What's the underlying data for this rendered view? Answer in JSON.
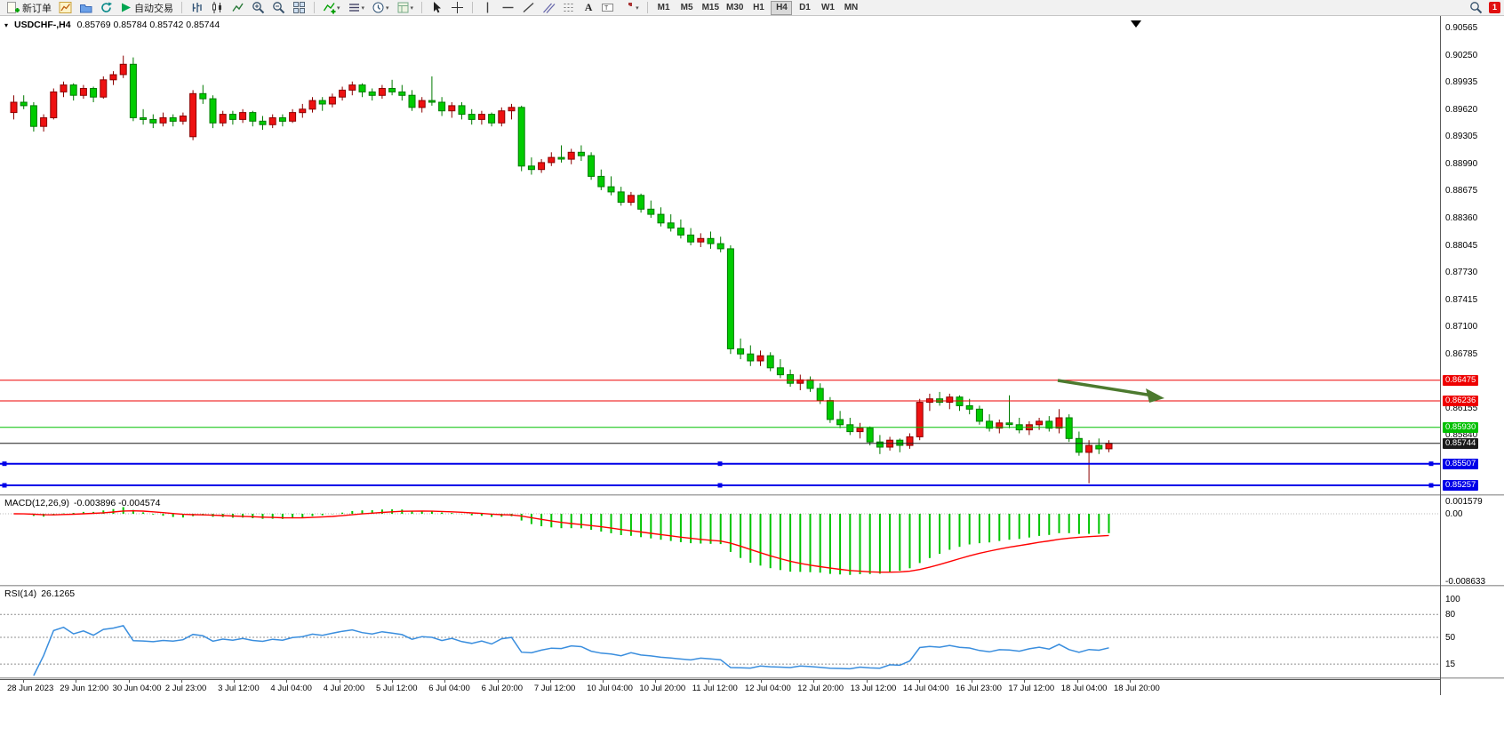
{
  "toolbar": {
    "new_order_label": "新订单",
    "autotrading_label": "自动交易",
    "timeframes": [
      "M1",
      "M5",
      "M15",
      "M30",
      "H1",
      "H4",
      "D1",
      "W1",
      "MN"
    ],
    "active_timeframe": "H4",
    "notification_badge": "1",
    "icons": [
      "new-order",
      "new-chart",
      "profiles",
      "refresh",
      "autotrading-play",
      "bar-chart",
      "candlestick-chart",
      "line-chart",
      "zoom-in",
      "zoom-out",
      "tile-windows",
      "indicators",
      "indicator-list",
      "objects-dropdown",
      "period-clock",
      "templates",
      "cursor",
      "crosshair",
      "vertical-line",
      "horizontal-line",
      "trendline",
      "equidistant-channel",
      "fibonacci",
      "text",
      "text-label",
      "arrow-shapes",
      "search",
      "alerts"
    ]
  },
  "chart": {
    "symbol_title": "USDCHF-,H4",
    "ohlc": "0.85769 0.85784 0.85742 0.85744",
    "price_axis_labels": [
      "0.90565",
      "0.90250",
      "0.89935",
      "0.89620",
      "0.89305",
      "0.88990",
      "0.88675",
      "0.88360",
      "0.88045",
      "0.87730",
      "0.87415",
      "0.87100",
      "0.86785",
      "0.86155",
      "0.85840"
    ],
    "levels": [
      {
        "price": 0.86475,
        "label": "0.86475",
        "color": "#ee0000",
        "width": 1,
        "handles": false
      },
      {
        "price": 0.86236,
        "label": "0.86236",
        "color": "#ee0000",
        "width": 1,
        "handles": false
      },
      {
        "price": 0.8593,
        "label": "0.85930",
        "color": "#00c000",
        "width": 1,
        "handles": false
      },
      {
        "price": 0.85744,
        "label": "0.85744",
        "color": "#1a1a1a",
        "width": 1,
        "handles": false
      },
      {
        "price": 0.85507,
        "label": "0.85507",
        "color": "#0000e8",
        "width": 2,
        "handles": true
      },
      {
        "price": 0.85257,
        "label": "0.85257",
        "color": "#0000e8",
        "width": 2,
        "handles": true
      }
    ],
    "arrow_color": "#4c7a2f",
    "bull_color": "#ee1111",
    "bear_color": "#00cc00"
  },
  "macd": {
    "name": "MACD(12,26,9)",
    "values": "-0.003896 -0.004574",
    "axis": [
      "0.001579",
      "0.00",
      "-0.008633"
    ],
    "histogram_color": "#00c400",
    "signal_color": "#ff0000"
  },
  "rsi": {
    "name": "RSI(14)",
    "value": "26.1265",
    "axis": [
      "100",
      "80",
      "50",
      "15"
    ],
    "levels": [
      80,
      50,
      15
    ],
    "line_color": "#3a8ede"
  },
  "time_axis": [
    "28 Jun 2023",
    "29 Jun 12:00",
    "30 Jun 04:00",
    "2 Jul 23:00",
    "3 Jul 12:00",
    "4 Jul 04:00",
    "4 Jul 20:00",
    "5 Jul 12:00",
    "6 Jul 04:00",
    "6 Jul 20:00",
    "7 Jul 12:00",
    "10 Jul 04:00",
    "10 Jul 20:00",
    "11 Jul 12:00",
    "12 Jul 04:00",
    "12 Jul 20:00",
    "13 Jul 12:00",
    "14 Jul 04:00",
    "16 Jul 23:00",
    "17 Jul 12:00",
    "18 Jul 04:00",
    "18 Jul 20:00"
  ],
  "chart_data": {
    "type": "candlestick",
    "symbol": "USDCHF-",
    "timeframe": "H4",
    "ohlc_readout": [
      0.85769,
      0.85784,
      0.85742,
      0.85744
    ],
    "price_range": [
      0.85257,
      0.90565
    ],
    "indicators": [
      {
        "name": "MACD",
        "params": [
          12,
          26,
          9
        ],
        "display_values": [
          -0.003896,
          -0.004574
        ],
        "axis_range": [
          -0.008633,
          0.001579
        ]
      },
      {
        "name": "RSI",
        "params": [
          14
        ],
        "display_values": [
          26.1265
        ],
        "levels": [
          80,
          50,
          15
        ]
      }
    ],
    "horizontal_lines": [
      0.86475,
      0.86236,
      0.8593,
      0.85744,
      0.85507,
      0.85257
    ],
    "candles": [
      [
        0.8958,
        0.8978,
        0.895,
        0.897
      ],
      [
        0.897,
        0.8978,
        0.8962,
        0.8966
      ],
      [
        0.8966,
        0.897,
        0.8936,
        0.8942
      ],
      [
        0.8942,
        0.8956,
        0.8936,
        0.8952
      ],
      [
        0.8952,
        0.8986,
        0.895,
        0.8982
      ],
      [
        0.8982,
        0.8994,
        0.8976,
        0.899
      ],
      [
        0.899,
        0.8992,
        0.8972,
        0.8978
      ],
      [
        0.8978,
        0.899,
        0.8974,
        0.8986
      ],
      [
        0.8986,
        0.8988,
        0.897,
        0.8976
      ],
      [
        0.8976,
        0.9,
        0.8974,
        0.8996
      ],
      [
        0.8996,
        0.9006,
        0.899,
        0.9002
      ],
      [
        0.9002,
        0.9024,
        0.8998,
        0.9014
      ],
      [
        0.9014,
        0.9022,
        0.8948,
        0.8952
      ],
      [
        0.8952,
        0.8962,
        0.8944,
        0.895
      ],
      [
        0.895,
        0.8956,
        0.894,
        0.8946
      ],
      [
        0.8946,
        0.8958,
        0.8942,
        0.8952
      ],
      [
        0.8952,
        0.8956,
        0.8942,
        0.8948
      ],
      [
        0.8948,
        0.8958,
        0.8944,
        0.8954
      ],
      [
        0.893,
        0.8984,
        0.8926,
        0.898
      ],
      [
        0.898,
        0.899,
        0.8968,
        0.8974
      ],
      [
        0.8974,
        0.8978,
        0.894,
        0.8946
      ],
      [
        0.8946,
        0.896,
        0.8942,
        0.8956
      ],
      [
        0.8956,
        0.896,
        0.8944,
        0.895
      ],
      [
        0.895,
        0.8962,
        0.8946,
        0.8958
      ],
      [
        0.8958,
        0.896,
        0.8942,
        0.8948
      ],
      [
        0.8948,
        0.8954,
        0.8938,
        0.8944
      ],
      [
        0.8944,
        0.8956,
        0.894,
        0.8952
      ],
      [
        0.8952,
        0.8956,
        0.8942,
        0.8948
      ],
      [
        0.8948,
        0.8962,
        0.8946,
        0.8958
      ],
      [
        0.8958,
        0.8968,
        0.8952,
        0.8962
      ],
      [
        0.8962,
        0.8976,
        0.8958,
        0.8972
      ],
      [
        0.8972,
        0.8976,
        0.896,
        0.8968
      ],
      [
        0.8968,
        0.898,
        0.8964,
        0.8976
      ],
      [
        0.8976,
        0.8988,
        0.8972,
        0.8984
      ],
      [
        0.8984,
        0.8994,
        0.8978,
        0.899
      ],
      [
        0.899,
        0.8992,
        0.8976,
        0.8982
      ],
      [
        0.8982,
        0.8986,
        0.8972,
        0.8978
      ],
      [
        0.8978,
        0.899,
        0.8974,
        0.8986
      ],
      [
        0.8986,
        0.8996,
        0.8978,
        0.8982
      ],
      [
        0.8982,
        0.899,
        0.8972,
        0.8978
      ],
      [
        0.8978,
        0.8984,
        0.896,
        0.8964
      ],
      [
        0.8964,
        0.8976,
        0.8958,
        0.8972
      ],
      [
        0.8972,
        0.9,
        0.8966,
        0.897
      ],
      [
        0.897,
        0.8976,
        0.8954,
        0.896
      ],
      [
        0.896,
        0.897,
        0.8952,
        0.8966
      ],
      [
        0.8966,
        0.897,
        0.895,
        0.8956
      ],
      [
        0.8956,
        0.8962,
        0.8944,
        0.895
      ],
      [
        0.895,
        0.896,
        0.8944,
        0.8956
      ],
      [
        0.8956,
        0.8958,
        0.8942,
        0.8946
      ],
      [
        0.8946,
        0.8964,
        0.8942,
        0.896
      ],
      [
        0.896,
        0.8968,
        0.895,
        0.8964
      ],
      [
        0.8964,
        0.8966,
        0.889,
        0.8896
      ],
      [
        0.8896,
        0.8906,
        0.8886,
        0.8892
      ],
      [
        0.8892,
        0.8904,
        0.8888,
        0.89
      ],
      [
        0.89,
        0.8912,
        0.8896,
        0.8906
      ],
      [
        0.8906,
        0.892,
        0.89,
        0.8904
      ],
      [
        0.8904,
        0.8916,
        0.8898,
        0.8912
      ],
      [
        0.8912,
        0.892,
        0.8902,
        0.8908
      ],
      [
        0.8908,
        0.8912,
        0.888,
        0.8884
      ],
      [
        0.8884,
        0.8892,
        0.8868,
        0.8872
      ],
      [
        0.8872,
        0.8884,
        0.8862,
        0.8866
      ],
      [
        0.8866,
        0.8872,
        0.885,
        0.8854
      ],
      [
        0.8854,
        0.8866,
        0.885,
        0.8862
      ],
      [
        0.8862,
        0.8864,
        0.8842,
        0.8846
      ],
      [
        0.8846,
        0.8856,
        0.8836,
        0.884
      ],
      [
        0.884,
        0.8848,
        0.8826,
        0.883
      ],
      [
        0.883,
        0.884,
        0.882,
        0.8824
      ],
      [
        0.8824,
        0.8834,
        0.8812,
        0.8816
      ],
      [
        0.8816,
        0.8824,
        0.8804,
        0.8808
      ],
      [
        0.8808,
        0.8818,
        0.8802,
        0.8812
      ],
      [
        0.8812,
        0.882,
        0.88,
        0.8806
      ],
      [
        0.8806,
        0.8814,
        0.8796,
        0.88
      ],
      [
        0.88,
        0.8804,
        0.8678,
        0.8684
      ],
      [
        0.8684,
        0.8696,
        0.8672,
        0.8678
      ],
      [
        0.8678,
        0.8688,
        0.8664,
        0.867
      ],
      [
        0.867,
        0.8682,
        0.8664,
        0.8676
      ],
      [
        0.8676,
        0.868,
        0.8658,
        0.8662
      ],
      [
        0.8662,
        0.8672,
        0.865,
        0.8654
      ],
      [
        0.8654,
        0.866,
        0.864,
        0.8644
      ],
      [
        0.8644,
        0.8654,
        0.8636,
        0.8648
      ],
      [
        0.8648,
        0.8652,
        0.8634,
        0.8638
      ],
      [
        0.8638,
        0.8644,
        0.862,
        0.8624
      ],
      [
        0.8624,
        0.8628,
        0.8598,
        0.8602
      ],
      [
        0.8602,
        0.8612,
        0.8592,
        0.8596
      ],
      [
        0.8596,
        0.8604,
        0.8584,
        0.8588
      ],
      [
        0.8588,
        0.8598,
        0.858,
        0.8592
      ],
      [
        0.8592,
        0.8594,
        0.8572,
        0.8576
      ],
      [
        0.8576,
        0.8584,
        0.8562,
        0.857
      ],
      [
        0.857,
        0.8582,
        0.8566,
        0.8578
      ],
      [
        0.8578,
        0.858,
        0.8564,
        0.8572
      ],
      [
        0.8572,
        0.8586,
        0.8568,
        0.8582
      ],
      [
        0.8582,
        0.8626,
        0.8578,
        0.8622
      ],
      [
        0.8622,
        0.8632,
        0.8612,
        0.8626
      ],
      [
        0.8626,
        0.8634,
        0.8618,
        0.8622
      ],
      [
        0.8622,
        0.8632,
        0.8614,
        0.8628
      ],
      [
        0.8628,
        0.863,
        0.8612,
        0.8618
      ],
      [
        0.8618,
        0.8626,
        0.8608,
        0.8614
      ],
      [
        0.8614,
        0.8618,
        0.8596,
        0.86
      ],
      [
        0.86,
        0.8608,
        0.8588,
        0.8592
      ],
      [
        0.8592,
        0.8602,
        0.8586,
        0.8598
      ],
      [
        0.8598,
        0.863,
        0.8592,
        0.8596
      ],
      [
        0.8596,
        0.8604,
        0.8586,
        0.859
      ],
      [
        0.859,
        0.86,
        0.8584,
        0.8596
      ],
      [
        0.8596,
        0.8604,
        0.859,
        0.86
      ],
      [
        0.86,
        0.8606,
        0.8588,
        0.8592
      ],
      [
        0.8592,
        0.8614,
        0.8586,
        0.8604
      ],
      [
        0.8604,
        0.8608,
        0.8576,
        0.858
      ],
      [
        0.858,
        0.8588,
        0.856,
        0.8564
      ],
      [
        0.8564,
        0.8578,
        0.8528,
        0.8572
      ],
      [
        0.8572,
        0.858,
        0.8562,
        0.8568
      ],
      [
        0.8568,
        0.8578,
        0.8564,
        0.85744
      ]
    ]
  }
}
